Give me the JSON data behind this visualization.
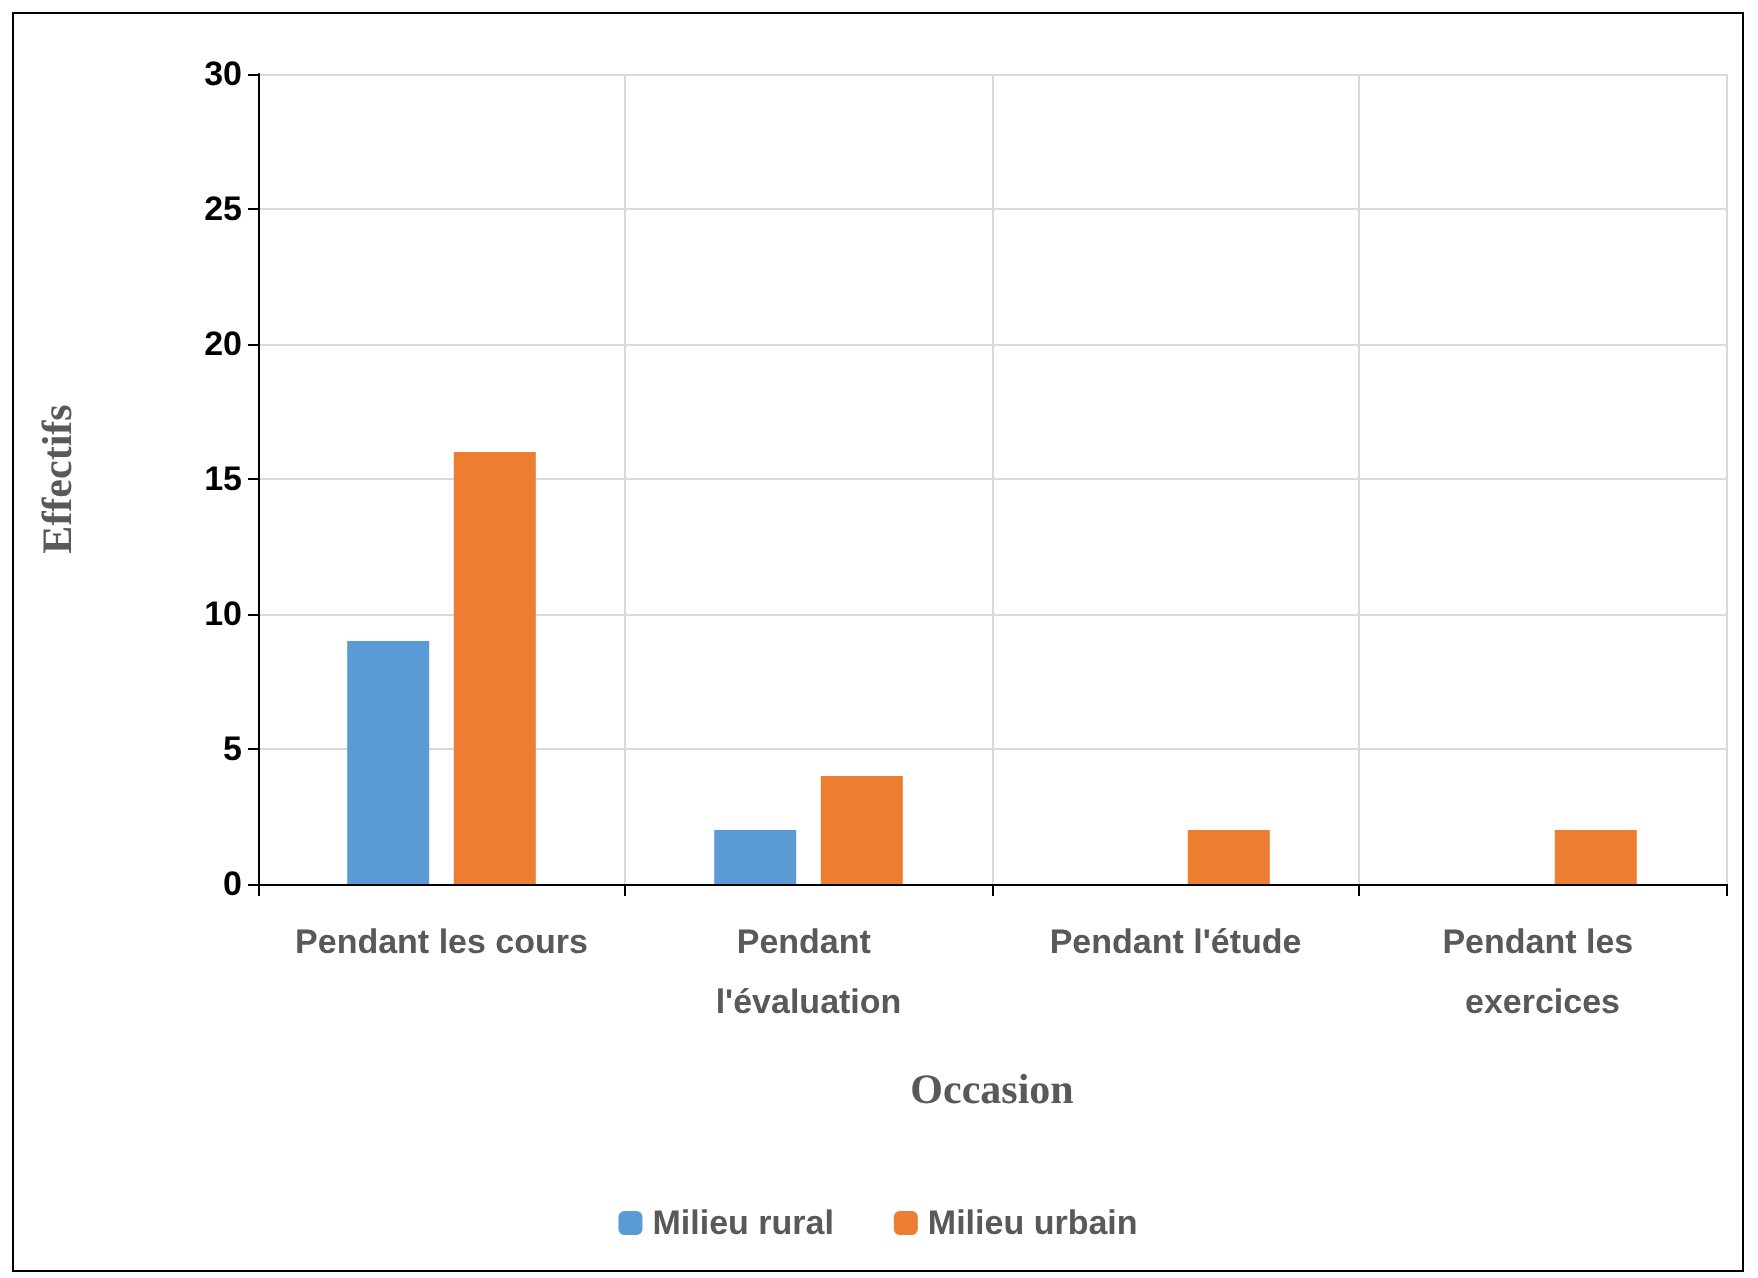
{
  "chart_data": {
    "type": "bar",
    "xlabel": "Occasion",
    "ylabel": "Effectifs",
    "categories": [
      "Pendant les cours",
      "Pendant l'évaluation",
      "Pendant l'étude",
      "Pendant les exercices"
    ],
    "series": [
      {
        "name": "Milieu rural",
        "color": "#5b9bd5",
        "values": [
          9,
          2,
          0,
          0
        ]
      },
      {
        "name": "Milieu urbain",
        "color": "#ed7d31",
        "values": [
          16,
          4,
          2,
          2
        ]
      }
    ],
    "ylim": [
      0,
      30
    ],
    "yticks": [
      0,
      5,
      10,
      15,
      20,
      25,
      30
    ],
    "grid": true,
    "legend": "bottom"
  }
}
